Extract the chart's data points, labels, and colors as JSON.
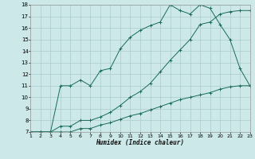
{
  "xlabel": "Humidex (Indice chaleur)",
  "background_color": "#cce8e8",
  "grid_color": "#aacccc",
  "line_color": "#1a6b5a",
  "xlim": [
    1,
    23
  ],
  "ylim": [
    7,
    18
  ],
  "x_ticks": [
    1,
    2,
    3,
    4,
    5,
    6,
    7,
    8,
    9,
    10,
    11,
    12,
    13,
    14,
    15,
    16,
    17,
    18,
    19,
    20,
    21,
    22,
    23
  ],
  "y_ticks": [
    7,
    8,
    9,
    10,
    11,
    12,
    13,
    14,
    15,
    16,
    17,
    18
  ],
  "line1": {
    "x": [
      1,
      2,
      3,
      4,
      5,
      6,
      7,
      8,
      9,
      10,
      11,
      12,
      13,
      14,
      15,
      16,
      17,
      18,
      19,
      20,
      21,
      22,
      23
    ],
    "y": [
      7,
      7,
      7,
      7,
      7,
      7.3,
      7.3,
      7.6,
      7.8,
      8.1,
      8.4,
      8.6,
      8.9,
      9.2,
      9.5,
      9.8,
      10.0,
      10.2,
      10.4,
      10.7,
      10.9,
      11.0,
      11.0
    ]
  },
  "line2": {
    "x": [
      1,
      2,
      3,
      4,
      5,
      6,
      7,
      8,
      9,
      10,
      11,
      12,
      13,
      14,
      15,
      16,
      17,
      18,
      19,
      20,
      21,
      22,
      23
    ],
    "y": [
      7,
      7,
      7,
      11,
      11,
      11.5,
      11,
      12.3,
      12.5,
      14.2,
      15.2,
      15.8,
      16.2,
      16.5,
      18,
      17.5,
      17.2,
      18,
      17.7,
      16.3,
      15,
      12.5,
      11
    ]
  },
  "line3": {
    "x": [
      1,
      2,
      3,
      4,
      5,
      6,
      7,
      8,
      9,
      10,
      11,
      12,
      13,
      14,
      15,
      16,
      17,
      18,
      19,
      20,
      21,
      22,
      23
    ],
    "y": [
      7,
      7,
      7,
      7.5,
      7.5,
      8.0,
      8.0,
      8.3,
      8.7,
      9.3,
      10.0,
      10.5,
      11.2,
      12.2,
      13.2,
      14.1,
      15.0,
      16.3,
      16.5,
      17.2,
      17.4,
      17.5,
      17.5
    ]
  }
}
